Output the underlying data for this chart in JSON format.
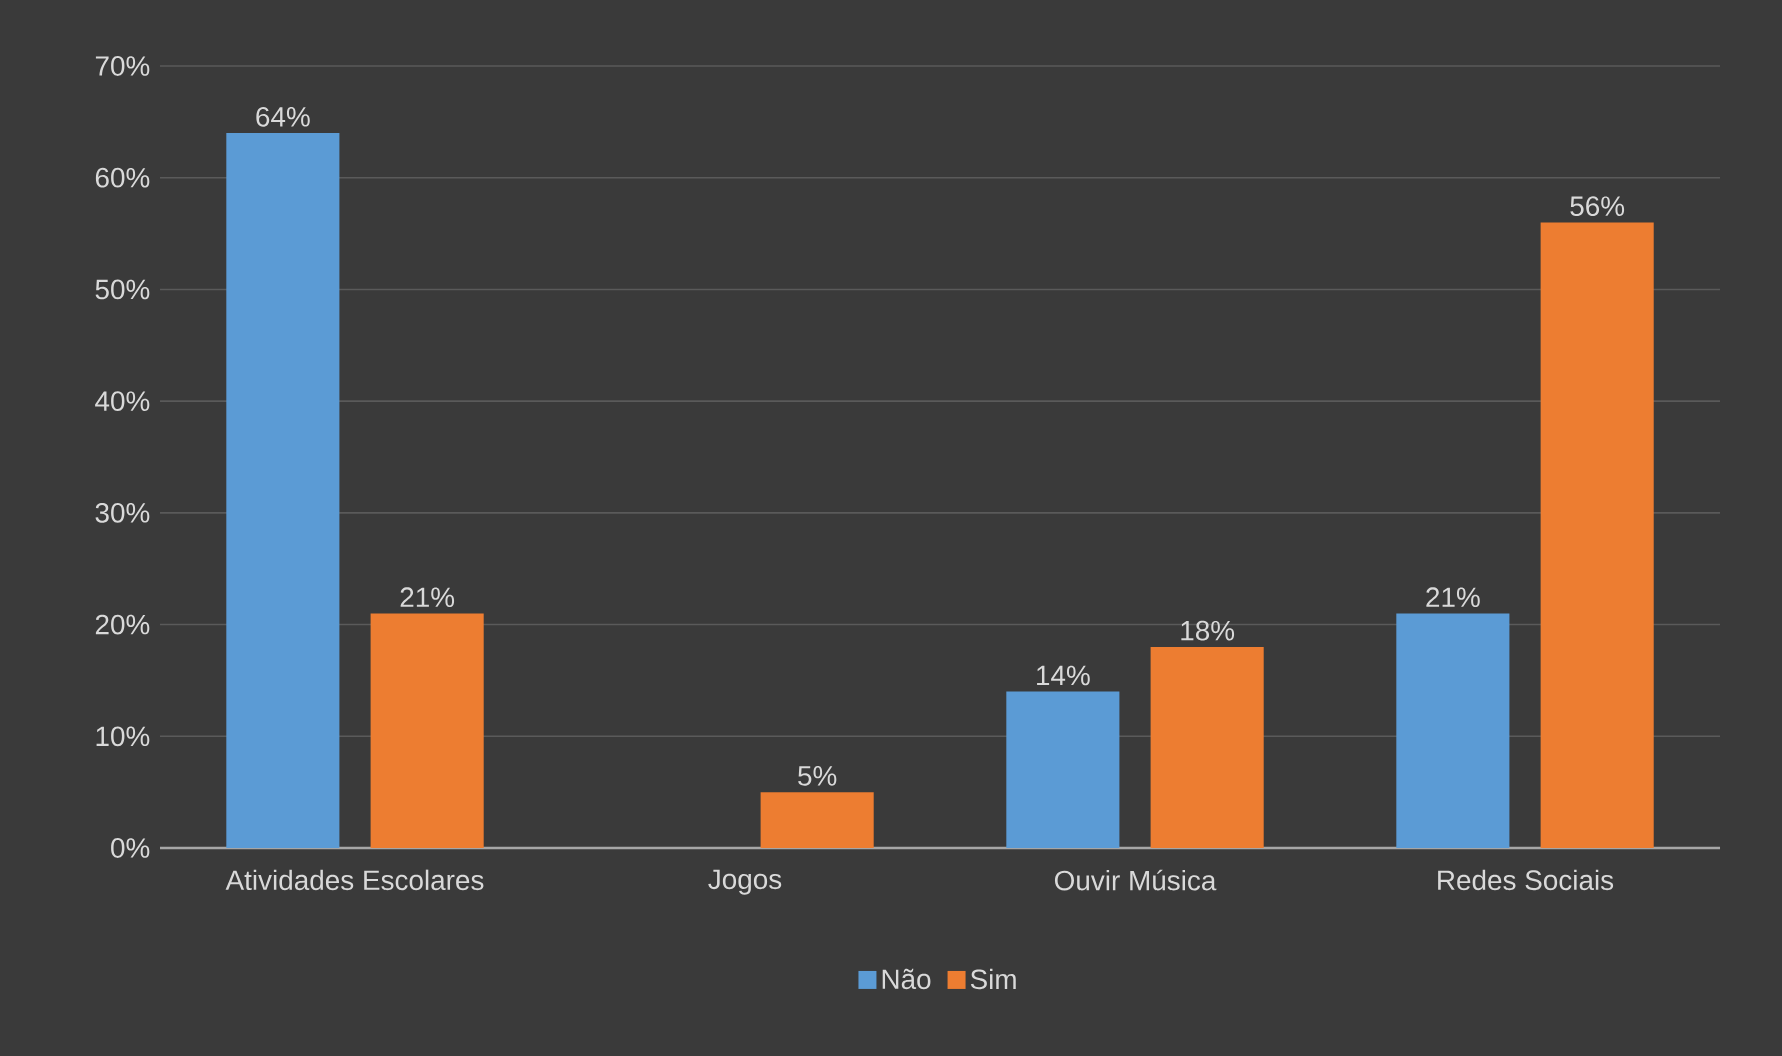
{
  "chart_data": {
    "type": "bar",
    "categories": [
      "Atividades Escolares",
      "Jogos",
      "Ouvir Música",
      "Redes Sociais"
    ],
    "series": [
      {
        "name": "Não",
        "color": "#5b9bd5",
        "values": [
          64,
          null,
          14,
          21
        ],
        "value_labels": [
          "64%",
          null,
          "14%",
          "21%"
        ]
      },
      {
        "name": "Sim",
        "color": "#ed7d31",
        "values": [
          21,
          5,
          18,
          56
        ],
        "value_labels": [
          "21%",
          "5%",
          "18%",
          "56%"
        ]
      }
    ],
    "ylim": [
      0,
      70
    ],
    "yticks": [
      {
        "value": 0,
        "label": "0%"
      },
      {
        "value": 10,
        "label": "10%"
      },
      {
        "value": 20,
        "label": "20%"
      },
      {
        "value": 30,
        "label": "30%"
      },
      {
        "value": 40,
        "label": "40%"
      },
      {
        "value": 50,
        "label": "50%"
      },
      {
        "value": 60,
        "label": "60%"
      },
      {
        "value": 70,
        "label": "70%"
      }
    ],
    "grid": "y",
    "legend": "bottom"
  }
}
